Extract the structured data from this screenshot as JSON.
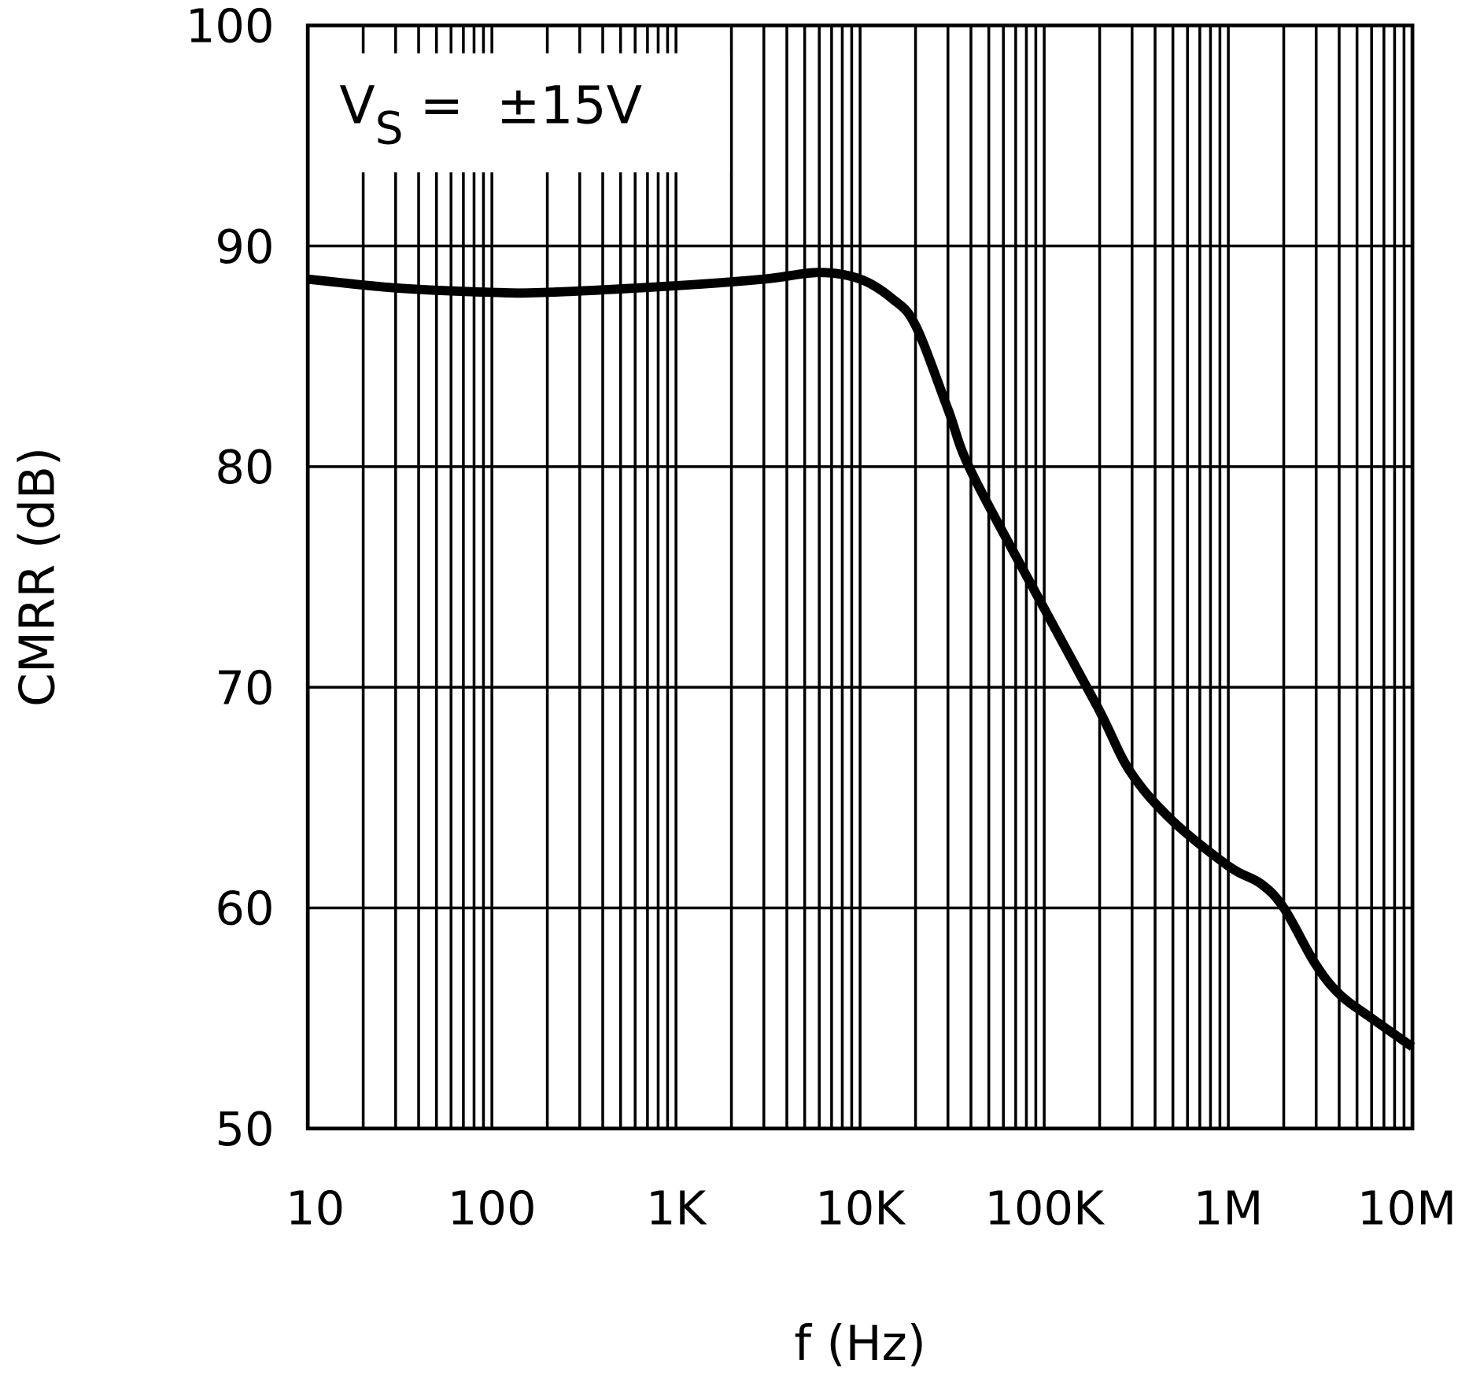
{
  "chart_data": {
    "type": "line",
    "xlabel": "f (Hz)",
    "ylabel": "CMRR (dB)",
    "x_scale": "log",
    "xlim": [
      10,
      10000000
    ],
    "ylim": [
      50,
      100
    ],
    "grid": true,
    "x_ticks": [
      {
        "value": 10,
        "label": "10"
      },
      {
        "value": 100,
        "label": "100"
      },
      {
        "value": 1000,
        "label": "1K"
      },
      {
        "value": 10000,
        "label": "10K"
      },
      {
        "value": 100000,
        "label": "100K"
      },
      {
        "value": 1000000,
        "label": "1M"
      },
      {
        "value": 10000000,
        "label": "10M"
      }
    ],
    "y_ticks": [
      {
        "value": 100,
        "label": "100"
      },
      {
        "value": 90,
        "label": "90"
      },
      {
        "value": 80,
        "label": "80"
      },
      {
        "value": 70,
        "label": "70"
      },
      {
        "value": 60,
        "label": "60"
      },
      {
        "value": 50,
        "label": "50"
      }
    ],
    "annotation": {
      "main": "V",
      "sub": "S",
      "rest": " =  ±15V"
    },
    "series": [
      {
        "color": "#000000",
        "x": [
          10,
          30,
          100,
          200,
          1000,
          3000,
          6000,
          10000,
          15000,
          20000,
          30000,
          40000,
          91000,
          195000,
          292000,
          490000,
          1000000,
          1500000,
          2000000,
          2950000,
          4000000,
          6000000,
          10000000
        ],
        "y": [
          88.5,
          88.1,
          87.9,
          87.9,
          88.2,
          88.5,
          88.8,
          88.5,
          87.6,
          86.4,
          82.6,
          79.8,
          74.2,
          69.1,
          66.2,
          64.0,
          61.9,
          61.1,
          60.0,
          57.5,
          56.1,
          55.0,
          53.7
        ]
      }
    ]
  }
}
